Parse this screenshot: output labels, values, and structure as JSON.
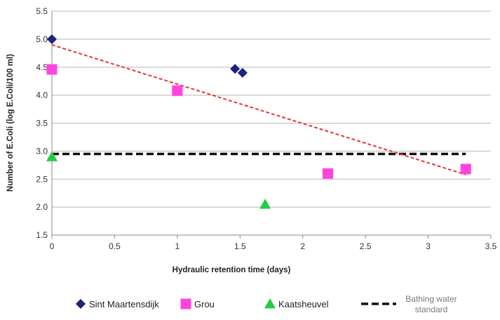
{
  "chart_data": {
    "type": "scatter",
    "title": "",
    "xlabel": "Hydraulic retention time (days)",
    "ylabel": "Number of E.Coli (log E.Coli/100 ml)",
    "xlim": [
      0,
      3.5
    ],
    "ylim": [
      1.5,
      5.5
    ],
    "x_ticks": [
      "0",
      "0.5",
      "1",
      "1.5",
      "2",
      "2.5",
      "3",
      "3.5"
    ],
    "y_ticks": [
      "1.5",
      "2.0",
      "2.5",
      "3.0",
      "3.5",
      "4.0",
      "4.5",
      "5.0",
      "5.5"
    ],
    "grid": "horizontal",
    "legend_position": "bottom",
    "series": [
      {
        "name": "Sint Maartensdijk",
        "marker": "diamond",
        "color": "#1a237e",
        "points": [
          [
            0,
            5.0
          ],
          [
            1.46,
            4.47
          ],
          [
            1.52,
            4.4
          ]
        ]
      },
      {
        "name": "Grou",
        "marker": "square",
        "color": "#ff44dd",
        "points": [
          [
            0,
            4.46
          ],
          [
            1.0,
            4.08
          ],
          [
            2.2,
            2.6
          ],
          [
            3.3,
            2.68
          ]
        ]
      },
      {
        "name": "Kaatsheuvel",
        "marker": "triangle",
        "color": "#22cc44",
        "points": [
          [
            0,
            2.9
          ],
          [
            1.7,
            2.05
          ]
        ]
      }
    ],
    "reference_line": {
      "name": "Bathing water standard",
      "y": 2.95,
      "x_range": [
        0,
        3.3
      ],
      "style": "dashed",
      "color": "#111111"
    },
    "trendline": {
      "x_range": [
        0,
        3.3
      ],
      "y_range": [
        4.9,
        2.58
      ],
      "style": "dashed",
      "color": "#e53935"
    },
    "legend": {
      "items": [
        "Sint Maartensdijk",
        "Grou",
        "Kaatsheuvel"
      ],
      "reference_label_line1": "Bathing water",
      "reference_label_line2": "standard"
    }
  }
}
